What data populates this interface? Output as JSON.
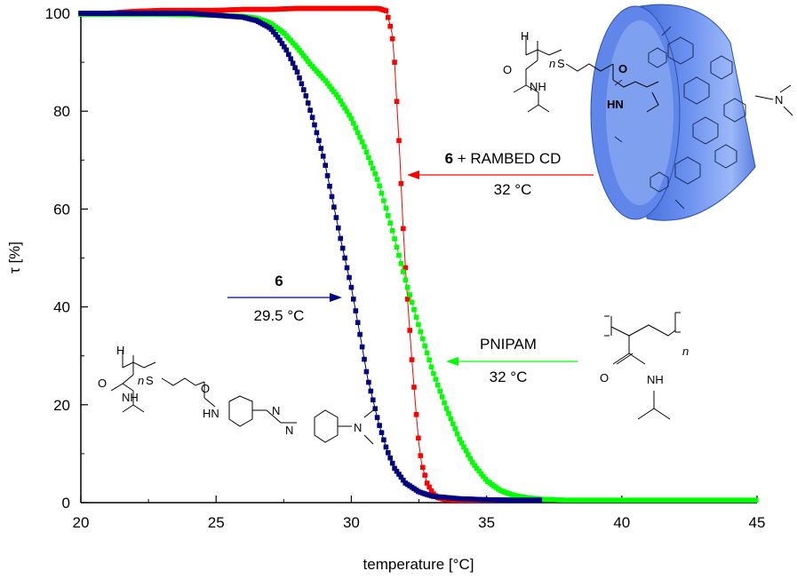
{
  "chart_data": {
    "type": "scatter",
    "xlabel": "temperature [°C]",
    "ylabel": "τ [%]",
    "xlim": [
      20,
      45
    ],
    "ylim": [
      0,
      100
    ],
    "xticks": [
      20,
      25,
      30,
      35,
      40,
      45
    ],
    "yticks": [
      0,
      20,
      40,
      60,
      80,
      100
    ],
    "grid": false,
    "series": [
      {
        "name": "6 + RAMBED CD",
        "color": "#ff0000",
        "x": [
          20.0,
          21.0,
          22.0,
          23.0,
          24.0,
          25.0,
          26.0,
          27.0,
          28.0,
          29.0,
          30.0,
          31.0,
          31.3,
          31.5,
          31.6,
          31.7,
          31.8,
          31.9,
          32.0,
          32.1,
          32.2,
          32.3,
          32.4,
          32.5,
          32.6,
          32.8,
          33.0,
          33.2,
          33.5,
          34.0,
          34.5,
          35.0,
          36.0,
          36.7
        ],
        "y": [
          100,
          100,
          100.4,
          100.6,
          100.6,
          100.6,
          100.8,
          100.8,
          101,
          101,
          101,
          101,
          100.5,
          96,
          90,
          80,
          70,
          58,
          48,
          40,
          32,
          25,
          18,
          12,
          8,
          4,
          2,
          1,
          0.6,
          0.5,
          0.5,
          0.5,
          0.5,
          0.5
        ]
      },
      {
        "name": "PNIPAM",
        "color": "#00ff00",
        "x": [
          20.0,
          21.0,
          22.0,
          23.0,
          24.0,
          25.0,
          26.0,
          26.5,
          27.0,
          27.5,
          28.0,
          28.5,
          29.0,
          29.5,
          30.0,
          30.5,
          31.0,
          31.5,
          32.0,
          32.5,
          33.0,
          33.5,
          34.0,
          34.5,
          35.0,
          35.5,
          36.0,
          36.5,
          37.0,
          38.0,
          40.0,
          42.0,
          45.0
        ],
        "y": [
          99.8,
          99.8,
          99.8,
          99.8,
          99.7,
          99.6,
          99.4,
          99.0,
          98.0,
          96.0,
          93.0,
          89.5,
          86.5,
          83.0,
          78.5,
          72.5,
          65.5,
          56.0,
          45.5,
          36.0,
          27.0,
          19.5,
          13.0,
          8.0,
          4.5,
          2.5,
          1.5,
          1.0,
          0.7,
          0.5,
          0.5,
          0.5,
          0.5
        ]
      },
      {
        "name": "6",
        "color": "#000080",
        "x": [
          20.0,
          21.0,
          22.0,
          23.0,
          24.0,
          25.0,
          26.0,
          26.5,
          27.0,
          27.3,
          27.6,
          28.0,
          28.3,
          28.6,
          29.0,
          29.3,
          29.6,
          30.0,
          30.3,
          30.6,
          31.0,
          31.3,
          31.6,
          32.0,
          32.5,
          33.0,
          34.0,
          35.0,
          36.0,
          37.0
        ],
        "y": [
          100,
          100,
          100,
          100,
          100,
          99.6,
          99.2,
          98.5,
          97.0,
          95.0,
          92.5,
          88.0,
          83.5,
          78.0,
          70.0,
          62.0,
          54.0,
          44.0,
          35.0,
          25.5,
          16.5,
          11.0,
          7.0,
          4.0,
          2.2,
          1.3,
          0.8,
          0.6,
          0.5,
          0.5
        ]
      }
    ],
    "annotations": [
      {
        "series": "6 + RAMBED CD",
        "label_bold": "6",
        "label_rest": " + RAMBED CD",
        "temp": "32 °C"
      },
      {
        "series": "6",
        "label_bold": "6",
        "label_rest": "",
        "temp": "29.5 °C"
      },
      {
        "series": "PNIPAM",
        "label_bold": "",
        "label_rest": "PNIPAM",
        "temp": "32 °C"
      }
    ]
  },
  "structures": {
    "polymer_top": {
      "h": "H",
      "n": "n",
      "s": "S",
      "o1": "O",
      "nh1": "NH",
      "o2": "O",
      "nh2": "HN"
    },
    "pnipam": {
      "n": "n",
      "o": "O",
      "nh": "NH"
    },
    "azo_conjugate": {
      "h": "H",
      "n": "n",
      "s": "S",
      "o1": "O",
      "nh1": "NH",
      "o2": "O",
      "hn": "HN",
      "azo1": "N",
      "azo2": "N",
      "amine": "N"
    },
    "cyclodextrin_amine": "N"
  }
}
